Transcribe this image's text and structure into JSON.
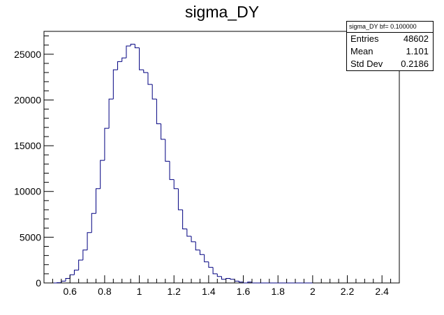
{
  "chart_data": {
    "type": "bar",
    "title": "sigma_DY",
    "xlabel": "",
    "ylabel": "",
    "xlim": [
      0.45,
      2.5
    ],
    "ylim": [
      0,
      27500
    ],
    "bin_width": 0.025,
    "line_color": "#000080",
    "x_ticks": [
      "0.6",
      "0.8",
      "1",
      "1.2",
      "1.4",
      "1.6",
      "1.8",
      "2",
      "2.2",
      "2.4"
    ],
    "y_ticks": [
      "0",
      "5000",
      "10000",
      "15000",
      "20000",
      "25000"
    ],
    "bins_low_edges": [
      0.5,
      0.525,
      0.55,
      0.575,
      0.6,
      0.625,
      0.65,
      0.675,
      0.7,
      0.725,
      0.75,
      0.775,
      0.8,
      0.825,
      0.85,
      0.875,
      0.9,
      0.925,
      0.95,
      0.975,
      1.0,
      1.025,
      1.05,
      1.075,
      1.1,
      1.125,
      1.15,
      1.175,
      1.2,
      1.225,
      1.25,
      1.275,
      1.3,
      1.325,
      1.35,
      1.375,
      1.4,
      1.425,
      1.45,
      1.475,
      1.5,
      1.525,
      1.55,
      1.575,
      1.6,
      1.625,
      1.65,
      1.675,
      1.7,
      1.725,
      1.75,
      1.775,
      1.8,
      1.825,
      1.85,
      1.875,
      1.9,
      1.925,
      1.95,
      1.975
    ],
    "values": [
      0,
      30,
      200,
      500,
      900,
      1400,
      2500,
      3600,
      5500,
      7600,
      10300,
      13400,
      16900,
      20100,
      23300,
      24200,
      24600,
      25900,
      26100,
      25700,
      23300,
      23000,
      21700,
      20100,
      17400,
      15700,
      13300,
      11300,
      10300,
      8000,
      5900,
      5100,
      4500,
      3600,
      3100,
      2300,
      1700,
      1000,
      700,
      400,
      500,
      400,
      200,
      100,
      0,
      100,
      0,
      0,
      0,
      0,
      0,
      0,
      0,
      0,
      0,
      0,
      0,
      0,
      0,
      0
    ],
    "grid": false,
    "legend": "none"
  },
  "statbox": {
    "title": "sigma_DY bf= 0.100000",
    "entries_label": "Entries",
    "entries_value": "48602",
    "mean_label": "Mean",
    "mean_value": "1.101",
    "std_label": "Std Dev",
    "std_value": "0.2186"
  }
}
